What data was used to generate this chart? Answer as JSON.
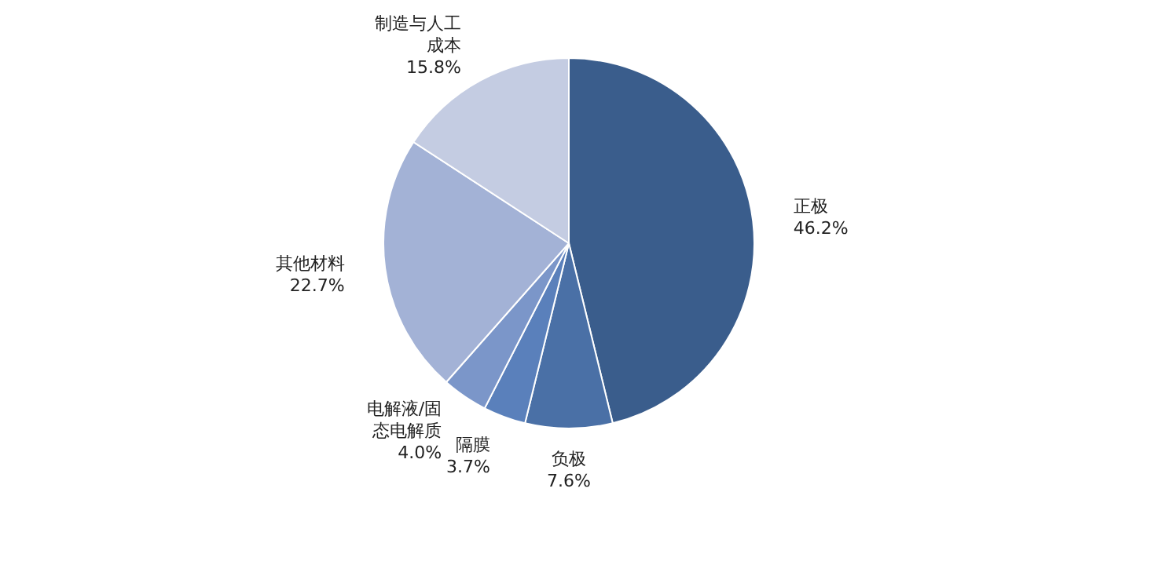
{
  "chart_data": {
    "type": "pie",
    "categories": [
      "正极",
      "负极",
      "隔膜",
      "电解液/固态电解质",
      "其他材料",
      "制造与人工成本"
    ],
    "values": [
      46.2,
      7.6,
      3.7,
      4.0,
      22.7,
      15.8
    ],
    "value_labels": [
      "46.2%",
      "7.6%",
      "3.7%",
      "4.0%",
      "22.7%",
      "15.8%"
    ],
    "colors": [
      "#3a5d8c",
      "#4a70a6",
      "#5a80bb",
      "#7b96c9",
      "#a3b2d6",
      "#c4cce2"
    ]
  }
}
